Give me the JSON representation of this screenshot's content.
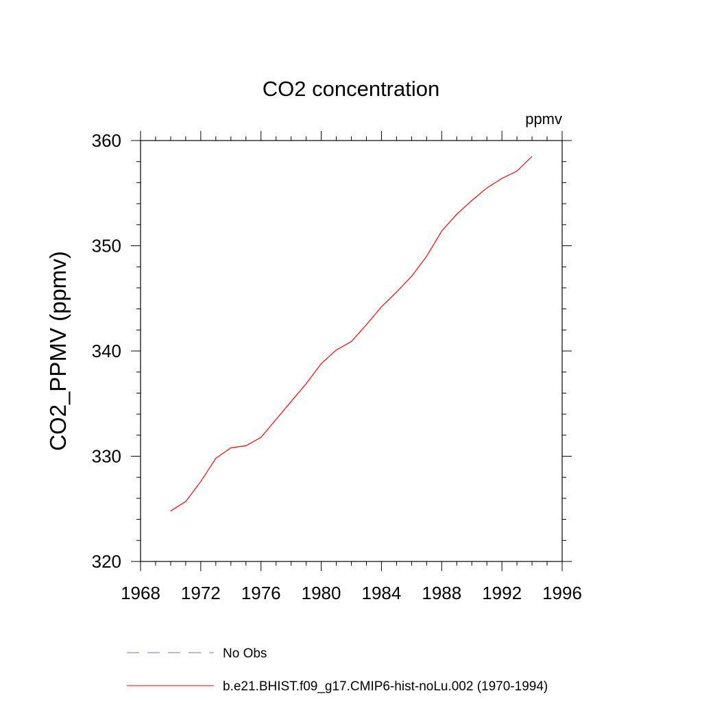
{
  "chart_data": {
    "type": "line",
    "title": "CO2 concentration",
    "units_label": "ppmv",
    "ylabel": "CO2_PPMV  (ppmv)",
    "xlabel": "",
    "xlim": [
      1968,
      1996
    ],
    "ylim": [
      320,
      360
    ],
    "x_ticks": [
      1968,
      1972,
      1976,
      1980,
      1984,
      1988,
      1992,
      1996
    ],
    "y_ticks": [
      320,
      330,
      340,
      350,
      360
    ],
    "grid": false,
    "legend_position": "bottom",
    "series": [
      {
        "name": "b.e21.BHIST.f09_g17.CMIP6-hist-noLu.002 (1970-1994)",
        "color": "#ff0000",
        "style": "solid",
        "x": [
          1970,
          1971,
          1972,
          1973,
          1974,
          1975,
          1976,
          1977,
          1978,
          1979,
          1980,
          1981,
          1982,
          1983,
          1984,
          1985,
          1986,
          1987,
          1988,
          1989,
          1990,
          1991,
          1992,
          1993,
          1994
        ],
        "y": [
          324.8,
          325.7,
          327.6,
          329.8,
          330.8,
          331.0,
          331.8,
          333.5,
          335.2,
          336.9,
          338.8,
          340.1,
          340.9,
          342.5,
          344.2,
          345.6,
          347.1,
          349.0,
          351.4,
          353.0,
          354.3,
          355.5,
          356.4,
          357.1,
          358.5
        ]
      }
    ],
    "legend": [
      {
        "label": "No Obs",
        "color": "#7070c0",
        "style": "dashed"
      },
      {
        "label": "b.e21.BHIST.f09_g17.CMIP6-hist-noLu.002 (1970-1994)",
        "color": "#ff0000",
        "style": "solid"
      }
    ]
  }
}
